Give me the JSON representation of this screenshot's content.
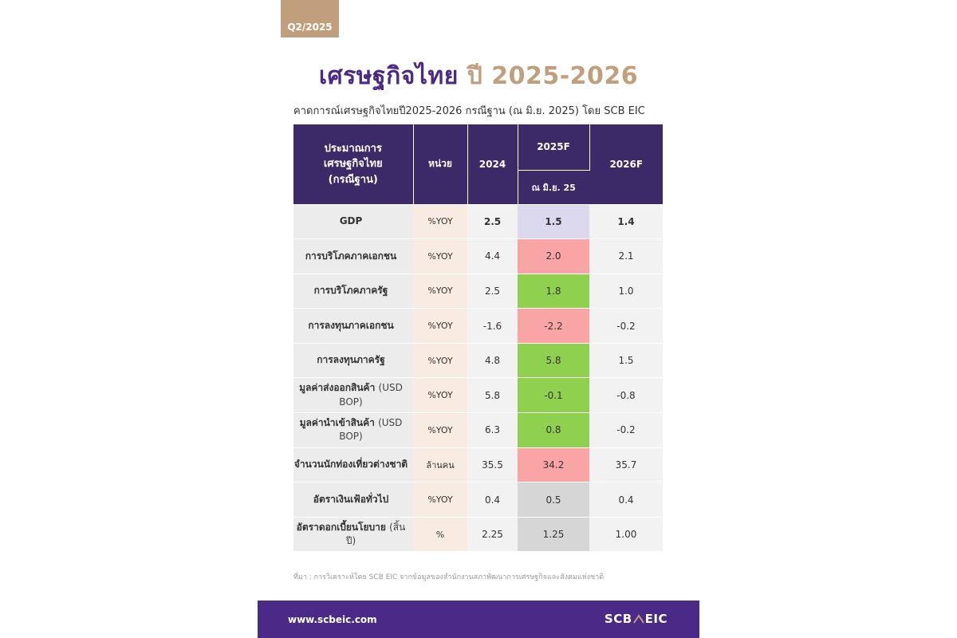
{
  "badge": "Q2/2025",
  "title": {
    "part1": "เศรษฐกิจไทย",
    "part2": "ปี 2025-2026"
  },
  "subtitle": "คาดการณ์เศรษฐกิจไทยปี2025-2026 กรณีฐาน (ณ มิ.ย. 2025) โดย SCB EIC",
  "table": {
    "headers": {
      "indicator": [
        "ประมาณการ",
        "เศรษฐกิจไทย",
        "(กรณีฐาน)"
      ],
      "unit": "หน่วย",
      "y2024": "2024",
      "y2025": "2025F",
      "y2025_sub": "ณ มิ.ย. 25",
      "y2026": "2026F"
    },
    "rows": [
      {
        "indicator": "GDP",
        "indicator_note": "",
        "unit": "%YOY",
        "y2024": "2.5",
        "y2025": "1.5",
        "y2026": "1.4",
        "y2025_color": "#dcd8ee",
        "bold": true
      },
      {
        "indicator": "การบริโภคภาคเอกชน",
        "indicator_note": "",
        "unit": "%YOY",
        "y2024": "4.4",
        "y2025": "2.0",
        "y2026": "2.1",
        "y2025_color": "#f9a5a5",
        "bold": false
      },
      {
        "indicator": "การบริโภคภาครัฐ",
        "indicator_note": "",
        "unit": "%YOY",
        "y2024": "2.5",
        "y2025": "1.8",
        "y2026": "1.0",
        "y2025_color": "#8fd14f",
        "bold": false
      },
      {
        "indicator": "การลงทุนภาคเอกชน",
        "indicator_note": "",
        "unit": "%YOY",
        "y2024": "-1.6",
        "y2025": "-2.2",
        "y2026": "-0.2",
        "y2025_color": "#f9a5a5",
        "bold": false
      },
      {
        "indicator": "การลงทุนภาครัฐ",
        "indicator_note": "",
        "unit": "%YOY",
        "y2024": "4.8",
        "y2025": "5.8",
        "y2026": "1.5",
        "y2025_color": "#8fd14f",
        "bold": false
      },
      {
        "indicator": "มูลค่าส่งออกสินค้า",
        "indicator_note": "(USD BOP)",
        "unit": "%YOY",
        "y2024": "5.8",
        "y2025": "-0.1",
        "y2026": "-0.8",
        "y2025_color": "#8fd14f",
        "bold": false
      },
      {
        "indicator": "มูลค่านำเข้าสินค้า",
        "indicator_note": "(USD BOP)",
        "unit": "%YOY",
        "y2024": "6.3",
        "y2025": "0.8",
        "y2026": "-0.2",
        "y2025_color": "#8fd14f",
        "bold": false
      },
      {
        "indicator": "จำนวนนักท่องเที่ยวต่างชาติ",
        "indicator_note": "",
        "unit": "ล้านคน",
        "y2024": "35.5",
        "y2025": "34.2",
        "y2026": "35.7",
        "y2025_color": "#f9a5a5",
        "bold": false
      },
      {
        "indicator": "อัตราเงินเฟ้อทั่วไป",
        "indicator_note": "",
        "unit": "%YOY",
        "y2024": "0.4",
        "y2025": "0.5",
        "y2026": "0.4",
        "y2025_color": "#d6d6d6",
        "bold": false
      },
      {
        "indicator": "อัตราดอกเบี้ยนโยบาย",
        "indicator_note": "(สิ้นปี)",
        "unit": "%",
        "y2024": "2.25",
        "y2025": "1.25",
        "y2026": "1.00",
        "y2025_color": "#d6d6d6",
        "bold": false
      }
    ]
  },
  "source": "ที่มา : การวิเคราะห์โดย SCB EIC จากข้อมูลของสำนักงานสภาพัฒนาการเศรษฐกิจและสังคมแห่งชาติ",
  "footer": {
    "url": "www.scbeic.com",
    "logo_left": "SCB",
    "logo_right": "EIC"
  },
  "colors": {
    "purple": "#4a2a86",
    "gold": "#c29f7c",
    "header": "#3c2a68"
  }
}
